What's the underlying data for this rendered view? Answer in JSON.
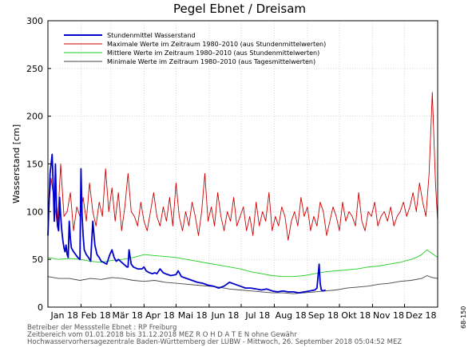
{
  "chart_data": {
    "type": "line",
    "title": "Pegel Ebnet / Dreisam",
    "ylabel": "Wasserstand [cm]",
    "ylim": [
      0,
      300
    ],
    "yticks": [
      0,
      50,
      100,
      150,
      200,
      250,
      300
    ],
    "xlim": [
      0,
      365
    ],
    "x_unit": "day of year 2018",
    "months": [
      {
        "label": "Jan 18",
        "start": 0
      },
      {
        "label": "Feb 18",
        "start": 31
      },
      {
        "label": "Mär 18",
        "start": 59
      },
      {
        "label": "Apr 18",
        "start": 90
      },
      {
        "label": "Mai 18",
        "start": 120
      },
      {
        "label": "Jun 18",
        "start": 151
      },
      {
        "label": "Jul 18",
        "start": 181
      },
      {
        "label": "Aug 18",
        "start": 212
      },
      {
        "label": "Sep 18",
        "start": 243
      },
      {
        "label": "Okt 18",
        "start": 273
      },
      {
        "label": "Nov 18",
        "start": 304
      },
      {
        "label": "Dez 18",
        "start": 334
      }
    ],
    "grid": true,
    "legend_position": "top-left",
    "series": [
      {
        "name": "Stundenmittel Wasserstand",
        "color": "#0000cc",
        "x": [
          0,
          2,
          4,
          5,
          6,
          7,
          8,
          9,
          10,
          11,
          12,
          13,
          14,
          15,
          16,
          17,
          18,
          19,
          20,
          21,
          22,
          24,
          26,
          28,
          30,
          31,
          32,
          33,
          34,
          36,
          38,
          40,
          42,
          44,
          46,
          48,
          50,
          52,
          55,
          58,
          60,
          62,
          64,
          66,
          68,
          70,
          72,
          74,
          75,
          76,
          78,
          80,
          84,
          88,
          90,
          92,
          95,
          98,
          100,
          102,
          105,
          108,
          110,
          115,
          120,
          122,
          125,
          130,
          135,
          140,
          145,
          150,
          155,
          160,
          165,
          170,
          175,
          180,
          185,
          190,
          195,
          200,
          205,
          210,
          215,
          220,
          225,
          230,
          235,
          240,
          245,
          250,
          252,
          254,
          255,
          256,
          258,
          260
        ],
        "y": [
          75,
          140,
          160,
          125,
          90,
          150,
          105,
          85,
          80,
          115,
          95,
          80,
          70,
          62,
          58,
          65,
          55,
          52,
          90,
          72,
          62,
          58,
          55,
          52,
          50,
          145,
          95,
          75,
          60,
          55,
          52,
          48,
          90,
          65,
          55,
          52,
          48,
          47,
          45,
          55,
          60,
          52,
          48,
          50,
          48,
          46,
          44,
          42,
          42,
          60,
          45,
          42,
          40,
          40,
          42,
          38,
          36,
          35,
          36,
          35,
          40,
          36,
          35,
          33,
          34,
          38,
          32,
          30,
          28,
          26,
          25,
          23,
          22,
          20,
          22,
          26,
          24,
          22,
          20,
          20,
          19,
          18,
          19,
          17,
          16,
          17,
          16,
          16,
          15,
          16,
          17,
          18,
          20,
          45,
          25,
          18,
          17,
          18
        ]
      },
      {
        "name": "Maximale Werte im Zeitraum 1980–2010 (aus Stundenmittelwerten)",
        "color": "#cc0000",
        "x": [
          0,
          3,
          6,
          9,
          12,
          15,
          18,
          21,
          24,
          27,
          30,
          33,
          36,
          39,
          42,
          45,
          48,
          51,
          54,
          57,
          60,
          63,
          66,
          69,
          72,
          75,
          78,
          81,
          84,
          87,
          90,
          93,
          96,
          99,
          102,
          105,
          108,
          111,
          114,
          117,
          120,
          123,
          126,
          129,
          132,
          135,
          138,
          141,
          144,
          147,
          150,
          153,
          156,
          159,
          162,
          165,
          168,
          171,
          174,
          177,
          180,
          183,
          186,
          189,
          192,
          195,
          198,
          201,
          204,
          207,
          210,
          213,
          216,
          219,
          222,
          225,
          228,
          231,
          234,
          237,
          240,
          243,
          246,
          249,
          252,
          255,
          258,
          261,
          264,
          267,
          270,
          273,
          276,
          279,
          282,
          285,
          288,
          291,
          294,
          297,
          300,
          303,
          306,
          309,
          312,
          315,
          318,
          321,
          324,
          327,
          330,
          333,
          336,
          339,
          342,
          345,
          348,
          351,
          354,
          357,
          360,
          363,
          365
        ],
        "y": [
          90,
          135,
          110,
          85,
          150,
          95,
          100,
          120,
          80,
          105,
          95,
          115,
          90,
          130,
          100,
          85,
          110,
          95,
          145,
          100,
          125,
          90,
          120,
          80,
          105,
          140,
          100,
          95,
          85,
          110,
          90,
          80,
          100,
          120,
          95,
          85,
          105,
          90,
          115,
          85,
          130,
          95,
          80,
          100,
          85,
          110,
          95,
          75,
          100,
          140,
          90,
          105,
          85,
          120,
          95,
          80,
          100,
          90,
          115,
          85,
          95,
          105,
          80,
          95,
          75,
          110,
          85,
          100,
          90,
          120,
          80,
          95,
          85,
          105,
          95,
          70,
          90,
          100,
          85,
          115,
          95,
          105,
          80,
          95,
          85,
          110,
          100,
          75,
          90,
          105,
          95,
          80,
          110,
          90,
          100,
          95,
          85,
          120,
          90,
          80,
          100,
          95,
          110,
          85,
          95,
          100,
          90,
          105,
          85,
          95,
          100,
          110,
          95,
          105,
          120,
          100,
          130,
          110,
          95,
          140,
          225,
          130,
          90
        ]
      },
      {
        "name": "Mittlere Werte im Zeitraum 1980–2010 (aus Stundenmittelwerten)",
        "color": "#22cc22",
        "x": [
          0,
          10,
          20,
          30,
          40,
          50,
          60,
          70,
          80,
          90,
          100,
          110,
          120,
          130,
          140,
          150,
          160,
          170,
          180,
          190,
          200,
          210,
          220,
          230,
          240,
          250,
          260,
          270,
          280,
          290,
          300,
          310,
          320,
          330,
          340,
          345,
          350,
          355,
          360,
          365
        ],
        "y": [
          52,
          50,
          51,
          50,
          48,
          47,
          49,
          50,
          52,
          55,
          54,
          53,
          52,
          50,
          48,
          46,
          44,
          42,
          40,
          37,
          35,
          33,
          32,
          32,
          33,
          35,
          37,
          38,
          39,
          40,
          42,
          43,
          45,
          47,
          50,
          52,
          55,
          60,
          56,
          52
        ]
      },
      {
        "name": "Minimale Werte im Zeitraum 1980–2010 (aus Tagesmittelwerten)",
        "color": "#444444",
        "x": [
          0,
          10,
          20,
          30,
          40,
          50,
          60,
          70,
          80,
          90,
          100,
          110,
          120,
          130,
          140,
          150,
          160,
          170,
          180,
          190,
          200,
          210,
          220,
          230,
          240,
          250,
          260,
          270,
          280,
          290,
          300,
          310,
          320,
          330,
          340,
          350,
          355,
          360,
          365
        ],
        "y": [
          32,
          30,
          30,
          28,
          30,
          29,
          31,
          30,
          28,
          27,
          28,
          26,
          25,
          24,
          23,
          22,
          21,
          19,
          18,
          17,
          16,
          15,
          15,
          14,
          15,
          16,
          17,
          18,
          20,
          21,
          22,
          24,
          25,
          27,
          28,
          30,
          33,
          31,
          30
        ]
      }
    ]
  },
  "footer": {
    "line1": "Betreiber der Messstelle Ebnet : RP Freiburg",
    "line2": "Zeitbereich vom 01.01.2018 bis 31.12.2018     MEZ     R O H D A T E N  ohne Gewähr",
    "line3": "Hochwasservorhersagezentrale Baden-Württemberg der LUBW - Mittwoch, 26. September 2018 05:04:52 MEZ",
    "code": "68-150"
  }
}
